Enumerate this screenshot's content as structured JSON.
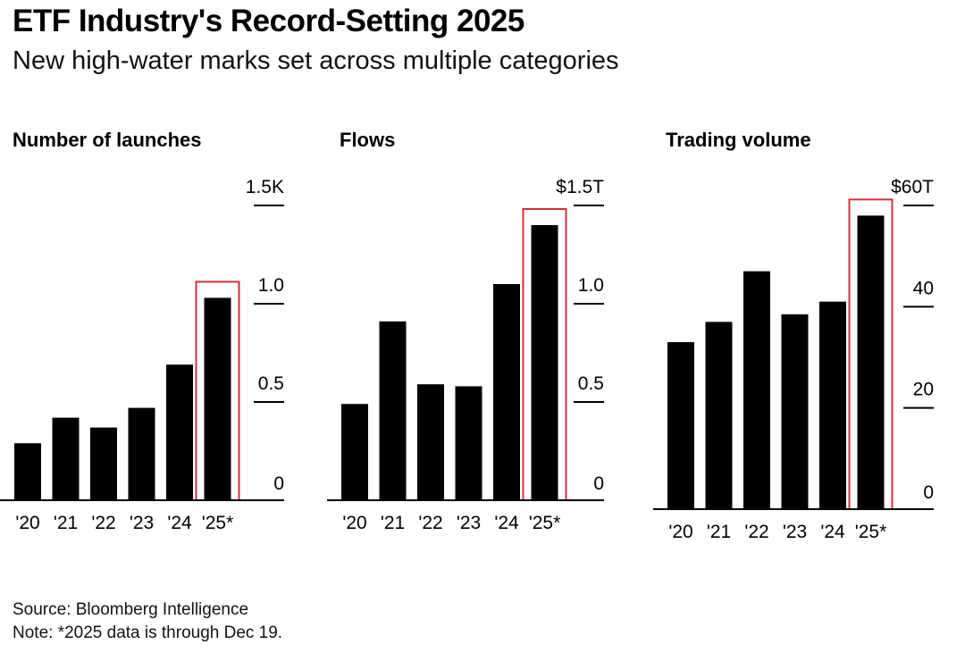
{
  "title": "ETF Industry's Record-Setting 2025",
  "subtitle": "New high-water marks set across multiple categories",
  "source": "Source: Bloomberg Intelligence",
  "note": "Note: *2025 data is through Dec 19.",
  "colors": {
    "bar": "#000000",
    "highlight": "#d0313a",
    "axis": "#000000"
  },
  "chart_data": [
    {
      "type": "bar",
      "title": "Number of launches",
      "categories": [
        "'20",
        "'21",
        "'22",
        "'23",
        "'24",
        "'25*"
      ],
      "values": [
        0.29,
        0.42,
        0.37,
        0.47,
        0.69,
        1.03
      ],
      "ylim": [
        0,
        1.5
      ],
      "yticks": [
        0,
        0.5,
        1.0,
        1.5
      ],
      "ytick_labels": [
        "0",
        "0.5",
        "1.0",
        "1.5K"
      ],
      "highlight_index": 5
    },
    {
      "type": "bar",
      "title": "Flows",
      "categories": [
        "'20",
        "'21",
        "'22",
        "'23",
        "'24",
        "'25*"
      ],
      "values": [
        0.49,
        0.91,
        0.59,
        0.58,
        1.1,
        1.4
      ],
      "ylim": [
        0,
        1.5
      ],
      "yticks": [
        0,
        0.5,
        1.0,
        1.5
      ],
      "ytick_labels": [
        "0",
        "0.5",
        "1.0",
        "$1.5T"
      ],
      "highlight_index": 5
    },
    {
      "type": "bar",
      "title": "Trading volume",
      "categories": [
        "'20",
        "'21",
        "'22",
        "'23",
        "'24",
        "'25*"
      ],
      "values": [
        33,
        37,
        47,
        38.5,
        41,
        58
      ],
      "ylim": [
        0,
        60
      ],
      "yticks": [
        0,
        20,
        40,
        60
      ],
      "ytick_labels": [
        "0",
        "20",
        "40",
        "$60T"
      ],
      "highlight_index": 5
    }
  ]
}
